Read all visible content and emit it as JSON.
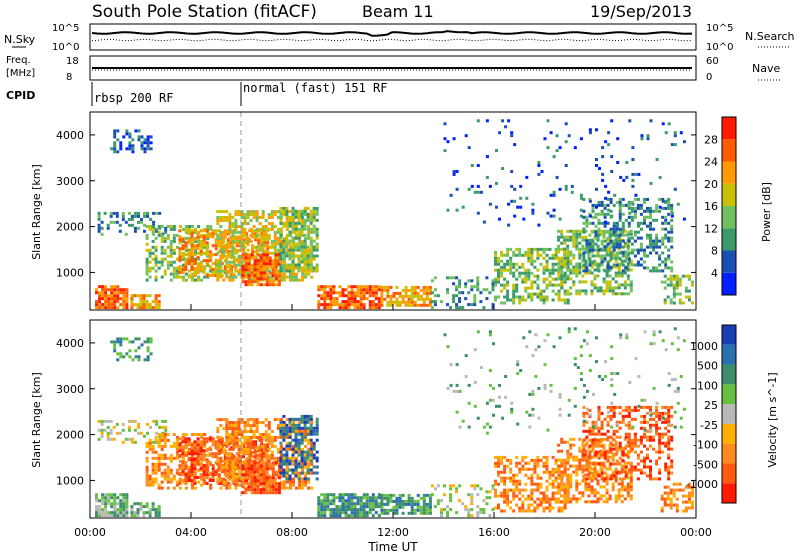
{
  "header": {
    "title": "South Pole Station (fitACF)",
    "beam": "Beam 11",
    "date": "19/Sep/2013"
  },
  "noise_panel": {
    "left_label": "N.Sky",
    "left_ticks": [
      "10^5",
      "10^0"
    ],
    "right_ticks": [
      "10^5",
      "10^0"
    ],
    "right_label": "N.Search"
  },
  "freq_panel": {
    "left_label_line1": "Freq.",
    "left_label_line2": "[MHz]",
    "left_ticks": [
      "18",
      "8"
    ],
    "right_ticks": [
      "60",
      "0"
    ],
    "right_label": "Nave"
  },
  "cpid_panel": {
    "label": "CPID",
    "modes": [
      {
        "start_hour": 0,
        "text": "rbsp 200 RF"
      },
      {
        "start_hour": 6,
        "text": "normal (fast) 151 RF"
      }
    ]
  },
  "time_axis": {
    "xlabel": "Time UT",
    "tick_labels": [
      "00:00",
      "04:00",
      "08:00",
      "12:00",
      "16:00",
      "20:00",
      "00:00"
    ]
  },
  "colors": {
    "power_scale": [
      "#0020ff",
      "#1a4fb3",
      "#3a9a6a",
      "#70c060",
      "#c8c000",
      "#ff9a00",
      "#ff5a00",
      "#ff1a00"
    ],
    "velocity_scale": [
      "#1a3fb5",
      "#2a6fb0",
      "#3c8f6a",
      "#66c040",
      "#b8b8b8",
      "#ffb000",
      "#ff8a20",
      "#ff5a10",
      "#ff1a00"
    ]
  },
  "chart_data": [
    {
      "type": "heatmap",
      "name": "power",
      "ylabel": "Slant Range [km]",
      "xlim": [
        0,
        24
      ],
      "ylim": [
        180,
        4500
      ],
      "y_ticks": [
        1000,
        2000,
        3000,
        4000
      ],
      "colorbar": {
        "label": "Power [dB]",
        "tick_labels": [
          "4",
          "8",
          "12",
          "16",
          "20",
          "24",
          "28"
        ],
        "range": [
          0,
          32
        ]
      }
    },
    {
      "type": "heatmap",
      "name": "velocity",
      "ylabel": "Slant Range [km]",
      "xlim": [
        0,
        24
      ],
      "ylim": [
        180,
        4500
      ],
      "y_ticks": [
        1000,
        2000,
        3000,
        4000
      ],
      "colorbar": {
        "label": "Velocity [m s^-1]",
        "tick_labels": [
          "1000",
          "500",
          "100",
          "25",
          "-25",
          "-100",
          "-500",
          "-1000"
        ]
      }
    }
  ]
}
